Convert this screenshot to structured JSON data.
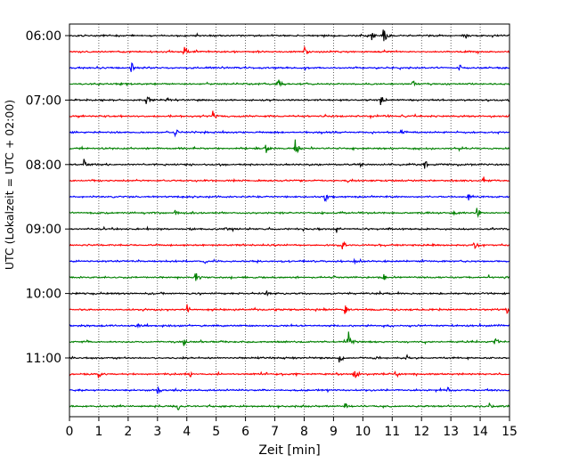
{
  "chart_data": {
    "type": "line",
    "subtype": "helicorder",
    "title": "",
    "xlabel": "Zeit  [min]",
    "ylabel": "UTC (Lokalzeit = UTC + 02:00)",
    "xlim": [
      0,
      15
    ],
    "x_ticks": [
      0,
      1,
      2,
      3,
      4,
      5,
      6,
      7,
      8,
      9,
      10,
      11,
      12,
      13,
      14,
      15
    ],
    "y_tick_labels": [
      "06:00",
      "07:00",
      "08:00",
      "09:00",
      "10:00",
      "11:00"
    ],
    "traces_per_hour": 4,
    "minutes_per_trace": 15,
    "grid": "vertical dotted lines at each minute",
    "colors": [
      "#000000",
      "#ff0000",
      "#0000ff",
      "#008000"
    ],
    "traces": [
      {
        "start": "06:00",
        "color": "#000000",
        "events": [
          {
            "t": 10.7,
            "amp": 1.0
          },
          {
            "t": 10.3,
            "amp": 0.5
          },
          {
            "t": 13.5,
            "amp": 0.5
          }
        ]
      },
      {
        "start": "06:15",
        "color": "#ff0000",
        "events": [
          {
            "t": 3.9,
            "amp": 0.7
          },
          {
            "t": 8.0,
            "amp": 0.8
          }
        ]
      },
      {
        "start": "06:30",
        "color": "#0000ff",
        "events": [
          {
            "t": 2.1,
            "amp": 0.8
          },
          {
            "t": 13.3,
            "amp": 0.4
          }
        ]
      },
      {
        "start": "06:45",
        "color": "#008000",
        "events": [
          {
            "t": 7.1,
            "amp": 0.7
          },
          {
            "t": 11.7,
            "amp": 0.5
          }
        ]
      },
      {
        "start": "07:00",
        "color": "#000000",
        "events": [
          {
            "t": 2.6,
            "amp": 0.7
          },
          {
            "t": 10.6,
            "amp": 0.7
          },
          {
            "t": 3.3,
            "amp": 0.35
          }
        ]
      },
      {
        "start": "07:15",
        "color": "#ff0000",
        "events": [
          {
            "t": 4.9,
            "amp": 0.5
          },
          {
            "t": 15.0,
            "amp": 0.4
          }
        ]
      },
      {
        "start": "07:30",
        "color": "#0000ff",
        "events": [
          {
            "t": 3.6,
            "amp": 0.55
          },
          {
            "t": 11.3,
            "amp": 0.4
          }
        ]
      },
      {
        "start": "07:45",
        "color": "#008000",
        "events": [
          {
            "t": 6.7,
            "amp": 0.5
          },
          {
            "t": 7.7,
            "amp": 1.0
          }
        ]
      },
      {
        "start": "08:00",
        "color": "#000000",
        "events": [
          {
            "t": 0.5,
            "amp": 0.6
          },
          {
            "t": 12.1,
            "amp": 0.65
          },
          {
            "t": 9.9,
            "amp": 0.35
          }
        ]
      },
      {
        "start": "08:15",
        "color": "#ff0000",
        "events": [
          {
            "t": 14.1,
            "amp": 0.5
          },
          {
            "t": 9.5,
            "amp": 0.35
          }
        ]
      },
      {
        "start": "08:30",
        "color": "#0000ff",
        "events": [
          {
            "t": 8.7,
            "amp": 0.6
          },
          {
            "t": 13.6,
            "amp": 0.45
          }
        ]
      },
      {
        "start": "08:45",
        "color": "#008000",
        "events": [
          {
            "t": 3.6,
            "amp": 0.45
          },
          {
            "t": 13.1,
            "amp": 0.45
          },
          {
            "t": 13.9,
            "amp": 0.55
          }
        ]
      },
      {
        "start": "09:00",
        "color": "#000000",
        "events": [
          {
            "t": 9.1,
            "amp": 0.5
          },
          {
            "t": 5.3,
            "amp": 0.3
          }
        ]
      },
      {
        "start": "09:15",
        "color": "#ff0000",
        "events": [
          {
            "t": 9.3,
            "amp": 0.45
          },
          {
            "t": 13.8,
            "amp": 0.5
          }
        ]
      },
      {
        "start": "09:30",
        "color": "#0000ff",
        "events": [
          {
            "t": 9.7,
            "amp": 0.35
          },
          {
            "t": 4.6,
            "amp": 0.3
          }
        ]
      },
      {
        "start": "09:45",
        "color": "#008000",
        "events": [
          {
            "t": 4.3,
            "amp": 0.5
          },
          {
            "t": 10.7,
            "amp": 0.45
          },
          {
            "t": 14.3,
            "amp": 0.4
          }
        ]
      },
      {
        "start": "10:00",
        "color": "#000000",
        "events": [
          {
            "t": 6.7,
            "amp": 0.3
          }
        ]
      },
      {
        "start": "10:15",
        "color": "#ff0000",
        "events": [
          {
            "t": 4.0,
            "amp": 0.6
          },
          {
            "t": 9.4,
            "amp": 0.55
          },
          {
            "t": 14.9,
            "amp": 0.45
          }
        ]
      },
      {
        "start": "10:30",
        "color": "#0000ff",
        "events": [
          {
            "t": 2.3,
            "amp": 0.3
          }
        ]
      },
      {
        "start": "10:45",
        "color": "#008000",
        "events": [
          {
            "t": 9.5,
            "amp": 1.2
          },
          {
            "t": 3.9,
            "amp": 0.45
          },
          {
            "t": 14.5,
            "amp": 0.4
          }
        ]
      },
      {
        "start": "11:00",
        "color": "#000000",
        "events": [
          {
            "t": 9.2,
            "amp": 0.5
          },
          {
            "t": 10.4,
            "amp": 0.4
          },
          {
            "t": 11.5,
            "amp": 0.3
          }
        ]
      },
      {
        "start": "11:15",
        "color": "#ff0000",
        "events": [
          {
            "t": 1.0,
            "amp": 0.45
          },
          {
            "t": 9.7,
            "amp": 0.7
          },
          {
            "t": 11.1,
            "amp": 0.55
          },
          {
            "t": 4.1,
            "amp": 0.35
          }
        ]
      },
      {
        "start": "11:30",
        "color": "#0000ff",
        "events": [
          {
            "t": 3.0,
            "amp": 0.35
          },
          {
            "t": 12.9,
            "amp": 0.3
          }
        ]
      },
      {
        "start": "11:45",
        "color": "#008000",
        "events": [
          {
            "t": 3.7,
            "amp": 0.45
          },
          {
            "t": 9.4,
            "amp": 0.4
          },
          {
            "t": 14.3,
            "amp": 0.45
          }
        ]
      }
    ]
  }
}
